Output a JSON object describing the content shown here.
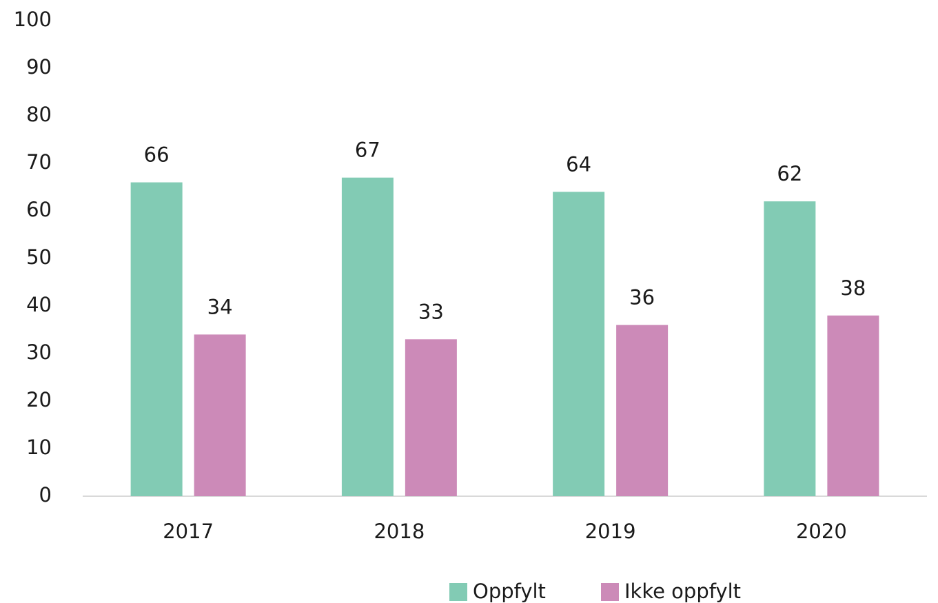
{
  "chart_data": {
    "type": "bar",
    "categories": [
      "2017",
      "2018",
      "2019",
      "2020"
    ],
    "series": [
      {
        "name": "Oppfylt",
        "color": "#82cbb4",
        "values": [
          66,
          67,
          64,
          62
        ]
      },
      {
        "name": "Ikke oppfylt",
        "color": "#cc8ab8",
        "values": [
          34,
          33,
          36,
          38
        ]
      }
    ],
    "ylim": [
      0,
      100
    ],
    "yticks": [
      0,
      10,
      20,
      30,
      40,
      50,
      60,
      70,
      80,
      90,
      100
    ],
    "grid": false,
    "legend": "bottom"
  }
}
